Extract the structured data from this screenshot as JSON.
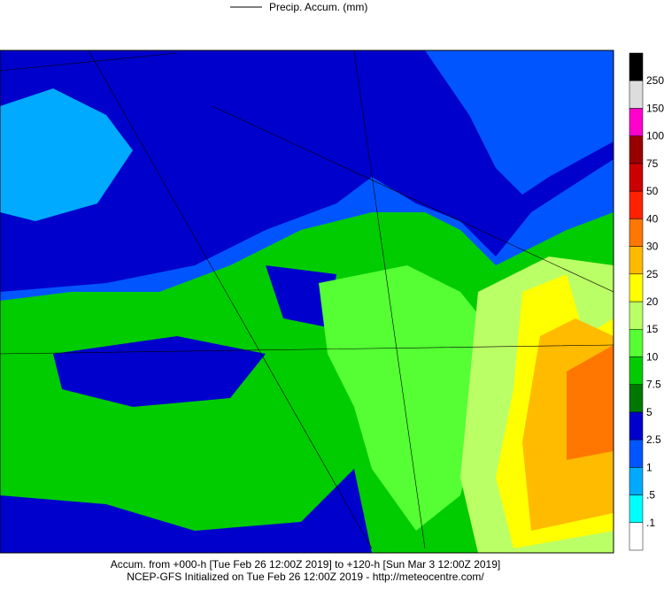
{
  "legend": {
    "label": "Precip. Accum. (mm)"
  },
  "colorbar": {
    "levels": [
      {
        "label": ".1",
        "color": "#ffffff"
      },
      {
        "label": ".5",
        "color": "#00ffff"
      },
      {
        "label": "1",
        "color": "#00aaff"
      },
      {
        "label": "2.5",
        "color": "#0055ff"
      },
      {
        "label": "5",
        "color": "#0000cc"
      },
      {
        "label": "7.5",
        "color": "#007800"
      },
      {
        "label": "10",
        "color": "#00cc00"
      },
      {
        "label": "15",
        "color": "#55ff33"
      },
      {
        "label": "20",
        "color": "#bbff66"
      },
      {
        "label": "25",
        "color": "#ffff00"
      },
      {
        "label": "30",
        "color": "#ffbb00"
      },
      {
        "label": "40",
        "color": "#ff7700"
      },
      {
        "label": "50",
        "color": "#ff2200"
      },
      {
        "label": "75",
        "color": "#cc0000"
      },
      {
        "label": "100",
        "color": "#990000"
      },
      {
        "label": "150",
        "color": "#ff00cc"
      },
      {
        "label": "250",
        "color": "#dddddd"
      }
    ],
    "top_color": "#000000"
  },
  "footer": {
    "line1": "Accum. from +000-h [Tue Feb 26 12:00Z 2019] to +120-h [Sun Mar 3 12:00Z 2019]",
    "line2": "NCEP-GFS Initialized on Tue Feb 26 12:00Z 2019 - http://meteocentre.com/"
  }
}
